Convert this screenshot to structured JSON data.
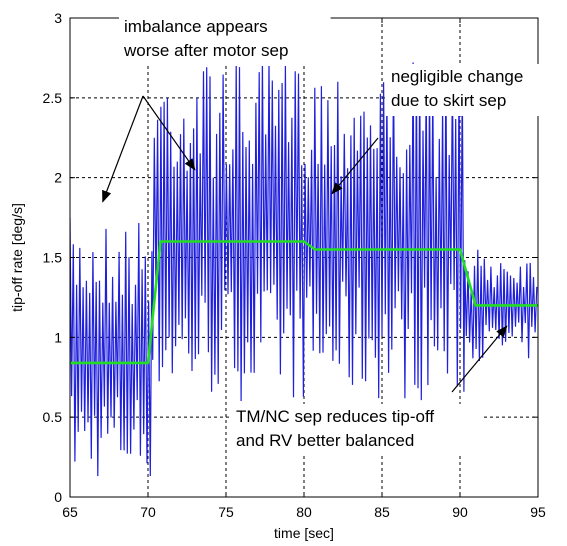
{
  "chart_data": {
    "type": "line",
    "title": "",
    "xlabel": "time [sec]",
    "ylabel": "tip-off rate [deg/s]",
    "xlim": [
      65,
      95
    ],
    "ylim": [
      0,
      3
    ],
    "grid": true,
    "x_ticks": [
      65,
      70,
      75,
      80,
      85,
      90,
      95
    ],
    "x_tick_labels": [
      "65",
      "70",
      "75",
      "80",
      "85",
      "90",
      "95"
    ],
    "y_ticks": [
      0,
      0.5,
      1,
      1.5,
      2,
      2.5,
      3
    ],
    "y_tick_labels": [
      "0",
      "0.5",
      "1",
      "1.5",
      "2",
      "2.5",
      "3"
    ],
    "series": [
      {
        "color": "#1f1fdc",
        "style": "oscillating",
        "envelope": [
          {
            "x_start": 65,
            "x_end": 70.3,
            "min": 0.1,
            "max": 1.75
          },
          {
            "x_start": 70.3,
            "x_end": 80.8,
            "min": 0.6,
            "max": 2.75
          },
          {
            "x_start": 80.8,
            "x_end": 90.3,
            "min": 0.6,
            "max": 2.75
          },
          {
            "x_start": 90.3,
            "x_end": 95,
            "min": 0.85,
            "max": 1.55
          }
        ]
      },
      {
        "color": "#22dd22",
        "style": "smooth",
        "x": [
          65,
          70,
          70.8,
          80,
          80.7,
          90,
          91,
          95
        ],
        "y": [
          0.84,
          0.84,
          1.6,
          1.6,
          1.55,
          1.55,
          1.2,
          1.2
        ]
      }
    ],
    "annotations": [
      {
        "lines": [
          "imbalance appears",
          "worse after motor sep"
        ],
        "arrows_to": [
          [
            67.1,
            1.85
          ],
          [
            73.0,
            2.05
          ]
        ]
      },
      {
        "lines": [
          "negligible change",
          "due to skirt sep"
        ],
        "arrows_to": [
          [
            81.8,
            1.9
          ]
        ]
      },
      {
        "lines": [
          "TM/NC sep reduces tip-off",
          "and RV better balanced"
        ],
        "arrows_to": [
          [
            93.0,
            1.07
          ]
        ]
      }
    ]
  }
}
